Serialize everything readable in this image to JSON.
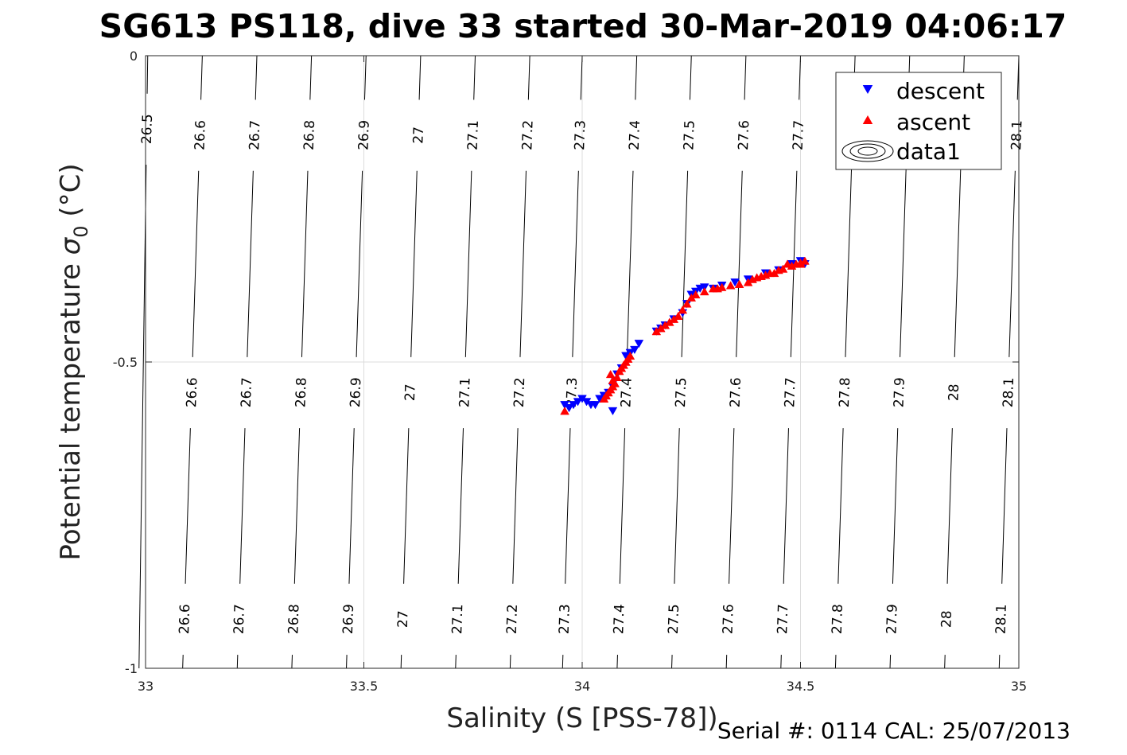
{
  "chart_data": {
    "type": "scatter",
    "title": "SG613 PS118, dive 33 started 30-Mar-2019 04:06:17",
    "xlabel": "Salinity (S [PSS-78])",
    "ylabel_main": "Potential temperature ",
    "ylabel_sigma": "σ",
    "ylabel_sub": "0",
    "ylabel_unit": " (°C)",
    "footer": "Serial #: 0114  CAL: 25/07/2013",
    "xlim": [
      33,
      35
    ],
    "ylim": [
      -1,
      0
    ],
    "xticks": [
      {
        "v": 33,
        "label": "33"
      },
      {
        "v": 33.5,
        "label": "33.5"
      },
      {
        "v": 34,
        "label": "34"
      },
      {
        "v": 34.5,
        "label": "34.5"
      },
      {
        "v": 35,
        "label": "35"
      }
    ],
    "yticks": [
      {
        "v": 0,
        "label": "0"
      },
      {
        "v": -0.5,
        "label": "-0.5"
      },
      {
        "v": -1,
        "label": "-1"
      }
    ],
    "grid": true,
    "legend_position": "top-right",
    "legend": [
      {
        "label": "descent",
        "marker": "triangle-down",
        "color": "#0000ff"
      },
      {
        "label": "ascent",
        "marker": "triangle-up",
        "color": "#ff0000"
      },
      {
        "label": "data1",
        "marker": "contour"
      }
    ],
    "contours": [
      {
        "level": "26.5",
        "s_top": 33.005,
        "s_bot": 32.985,
        "labels": [
          -0.12
        ]
      },
      {
        "level": "26.6",
        "s_top": 33.13,
        "s_bot": 33.085,
        "labels": [
          -0.13,
          -0.55,
          -0.92
        ]
      },
      {
        "level": "26.7",
        "s_top": 33.255,
        "s_bot": 33.21,
        "labels": [
          -0.13,
          -0.55,
          -0.92
        ]
      },
      {
        "level": "26.8",
        "s_top": 33.38,
        "s_bot": 33.335,
        "labels": [
          -0.13,
          -0.55,
          -0.92
        ]
      },
      {
        "level": "26.9",
        "s_top": 33.505,
        "s_bot": 33.46,
        "labels": [
          -0.13,
          -0.55,
          -0.92
        ]
      },
      {
        "level": "27",
        "s_top": 33.63,
        "s_bot": 33.585,
        "labels": [
          -0.13,
          -0.55,
          -0.92
        ]
      },
      {
        "level": "27.1",
        "s_top": 33.755,
        "s_bot": 33.71,
        "labels": [
          -0.13,
          -0.55,
          -0.92
        ]
      },
      {
        "level": "27.2",
        "s_top": 33.88,
        "s_bot": 33.835,
        "labels": [
          -0.13,
          -0.55,
          -0.92
        ]
      },
      {
        "level": "27.3",
        "s_top": 34.0,
        "s_bot": 33.955,
        "labels": [
          -0.13,
          -0.55,
          -0.92
        ]
      },
      {
        "level": "27.4",
        "s_top": 34.125,
        "s_bot": 34.08,
        "labels": [
          -0.13,
          -0.55,
          -0.92
        ]
      },
      {
        "level": "27.5",
        "s_top": 34.25,
        "s_bot": 34.205,
        "labels": [
          -0.13,
          -0.55,
          -0.92
        ]
      },
      {
        "level": "27.6",
        "s_top": 34.375,
        "s_bot": 34.33,
        "labels": [
          -0.13,
          -0.55,
          -0.92
        ]
      },
      {
        "level": "27.7",
        "s_top": 34.5,
        "s_bot": 34.455,
        "labels": [
          -0.13,
          -0.55,
          -0.92
        ]
      },
      {
        "level": "27.8",
        "s_top": 34.625,
        "s_bot": 34.58,
        "labels": [
          -0.55,
          -0.92
        ]
      },
      {
        "level": "27.9",
        "s_top": 34.75,
        "s_bot": 34.705,
        "labels": [
          -0.55,
          -0.92
        ]
      },
      {
        "level": "28",
        "s_top": 34.875,
        "s_bot": 34.83,
        "labels": [
          -0.55,
          -0.92
        ]
      },
      {
        "level": "28.1",
        "s_top": 35.0,
        "s_bot": 34.955,
        "labels": [
          -0.13,
          -0.55,
          -0.92
        ]
      }
    ],
    "series": [
      {
        "name": "descent",
        "marker": "triangle-down",
        "color": "#0000ff",
        "points": [
          [
            33.96,
            -0.57
          ],
          [
            33.97,
            -0.575
          ],
          [
            33.98,
            -0.57
          ],
          [
            33.99,
            -0.565
          ],
          [
            34.0,
            -0.56
          ],
          [
            34.01,
            -0.565
          ],
          [
            34.02,
            -0.57
          ],
          [
            34.03,
            -0.57
          ],
          [
            34.04,
            -0.56
          ],
          [
            34.05,
            -0.555
          ],
          [
            34.06,
            -0.55
          ],
          [
            34.07,
            -0.54
          ],
          [
            34.075,
            -0.53
          ],
          [
            34.08,
            -0.52
          ],
          [
            34.09,
            -0.51
          ],
          [
            34.1,
            -0.49
          ],
          [
            34.11,
            -0.485
          ],
          [
            34.12,
            -0.48
          ],
          [
            34.07,
            -0.58
          ],
          [
            34.13,
            -0.47
          ],
          [
            34.17,
            -0.45
          ],
          [
            34.18,
            -0.445
          ],
          [
            34.19,
            -0.44
          ],
          [
            34.21,
            -0.43
          ],
          [
            34.23,
            -0.42
          ],
          [
            34.24,
            -0.405
          ],
          [
            34.25,
            -0.39
          ],
          [
            34.26,
            -0.385
          ],
          [
            34.27,
            -0.38
          ],
          [
            34.28,
            -0.378
          ],
          [
            34.3,
            -0.38
          ],
          [
            34.32,
            -0.375
          ],
          [
            34.35,
            -0.37
          ],
          [
            34.38,
            -0.365
          ],
          [
            34.42,
            -0.355
          ],
          [
            34.45,
            -0.35
          ],
          [
            34.48,
            -0.34
          ],
          [
            34.5,
            -0.335
          ],
          [
            34.51,
            -0.34
          ]
        ]
      },
      {
        "name": "ascent",
        "marker": "triangle-up",
        "color": "#ff0000",
        "points": [
          [
            33.96,
            -0.58
          ],
          [
            34.05,
            -0.56
          ],
          [
            34.055,
            -0.555
          ],
          [
            34.06,
            -0.55
          ],
          [
            34.065,
            -0.545
          ],
          [
            34.07,
            -0.54
          ],
          [
            34.075,
            -0.535
          ],
          [
            34.08,
            -0.525
          ],
          [
            34.085,
            -0.515
          ],
          [
            34.09,
            -0.51
          ],
          [
            34.095,
            -0.505
          ],
          [
            34.1,
            -0.5
          ],
          [
            34.105,
            -0.495
          ],
          [
            34.11,
            -0.49
          ],
          [
            34.07,
            -0.53
          ],
          [
            34.065,
            -0.52
          ],
          [
            34.17,
            -0.45
          ],
          [
            34.18,
            -0.445
          ],
          [
            34.19,
            -0.44
          ],
          [
            34.2,
            -0.435
          ],
          [
            34.21,
            -0.43
          ],
          [
            34.22,
            -0.425
          ],
          [
            34.23,
            -0.415
          ],
          [
            34.24,
            -0.405
          ],
          [
            34.25,
            -0.395
          ],
          [
            34.26,
            -0.39
          ],
          [
            34.28,
            -0.385
          ],
          [
            34.3,
            -0.38
          ],
          [
            34.31,
            -0.38
          ],
          [
            34.32,
            -0.378
          ],
          [
            34.34,
            -0.375
          ],
          [
            34.36,
            -0.373
          ],
          [
            34.38,
            -0.37
          ],
          [
            34.39,
            -0.365
          ],
          [
            34.4,
            -0.362
          ],
          [
            34.42,
            -0.358
          ],
          [
            34.44,
            -0.355
          ],
          [
            34.45,
            -0.35
          ],
          [
            34.46,
            -0.348
          ],
          [
            34.48,
            -0.343
          ],
          [
            34.49,
            -0.34
          ],
          [
            34.5,
            -0.338
          ],
          [
            34.51,
            -0.335
          ],
          [
            34.5,
            -0.34
          ],
          [
            34.47,
            -0.34
          ],
          [
            34.43,
            -0.355
          ],
          [
            34.41,
            -0.36
          ]
        ]
      }
    ]
  }
}
